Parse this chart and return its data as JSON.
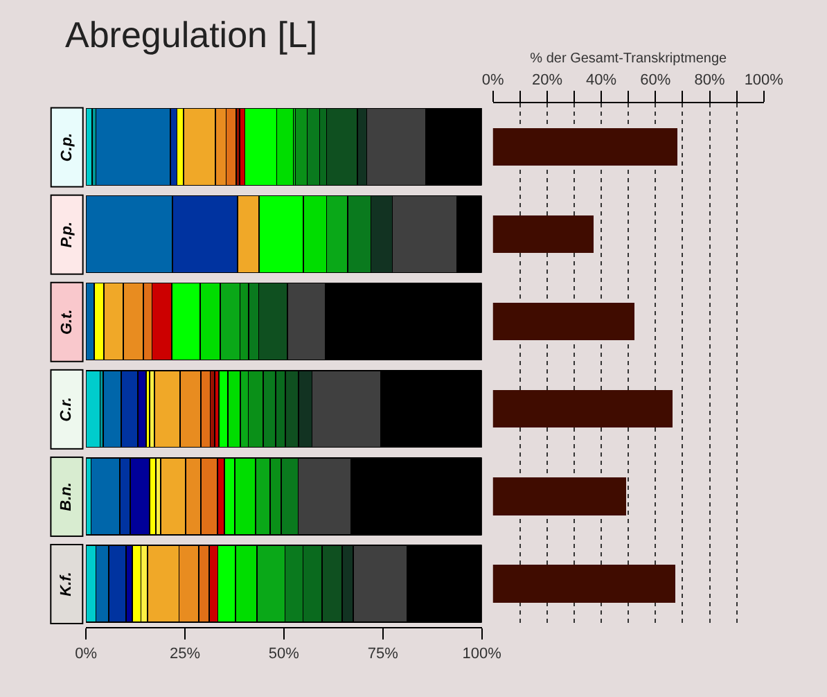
{
  "chart_data": [
    {
      "type": "bar",
      "orientation": "horizontal",
      "stacked": true,
      "title": "Abregulation [L]",
      "categories": [
        "C.p.",
        "P.p.",
        "G.t.",
        "C.r.",
        "B.n.",
        "K.f."
      ],
      "xlim": [
        0,
        100
      ],
      "xticks": [
        {
          "value": 0,
          "label": "0%"
        },
        {
          "value": 25,
          "label": "25%"
        },
        {
          "value": 50,
          "label": "50%"
        },
        {
          "value": 75,
          "label": "75%"
        },
        {
          "value": 100,
          "label": "100%"
        }
      ],
      "series": [
        {
          "color": "#00cccc",
          "values": [
            1.6,
            null,
            null,
            3.6,
            1.3,
            2.5
          ]
        },
        {
          "color": "#009999",
          "values": [
            0.9,
            null,
            null,
            0.8,
            null,
            null
          ]
        },
        {
          "color": "#0066aa",
          "values": [
            18.8,
            21.9,
            2.1,
            4.5,
            7.3,
            3.3
          ]
        },
        {
          "color": "#0033a0",
          "values": [
            1.7,
            16.4,
            null,
            4.2,
            2.6,
            4.3
          ]
        },
        {
          "color": "#000099",
          "values": [
            null,
            null,
            null,
            2.1,
            4.9,
            1.6
          ]
        },
        {
          "color": "#ffff00",
          "values": [
            1.6,
            null,
            2.4,
            0.9,
            1.5,
            2.2
          ]
        },
        {
          "color": "#ffee44",
          "values": [
            null,
            null,
            null,
            1.2,
            1.3,
            1.7
          ]
        },
        {
          "color": "#f0a828",
          "values": [
            8.1,
            5.4,
            4.9,
            6.5,
            6.3,
            7.9
          ]
        },
        {
          "color": "#e88c20",
          "values": [
            2.7,
            null,
            5.1,
            5.2,
            3.8,
            5.0
          ]
        },
        {
          "color": "#e07018",
          "values": [
            2.5,
            null,
            2.2,
            2.4,
            4.2,
            2.6
          ]
        },
        {
          "color": "#991100",
          "values": [
            0.9,
            null,
            null,
            1.1,
            null,
            null
          ]
        },
        {
          "color": "#cc0000",
          "values": [
            1.3,
            null,
            5.0,
            1.1,
            1.8,
            2.2
          ]
        },
        {
          "color": "#00ff00",
          "values": [
            8.1,
            11.2,
            7.2,
            2.3,
            2.6,
            4.5
          ]
        },
        {
          "color": "#00dd00",
          "values": [
            4.2,
            5.9,
            5.0,
            3.1,
            5.2,
            5.4
          ]
        },
        {
          "color": "#0aa818",
          "values": [
            0.5,
            5.3,
            5.0,
            2.0,
            3.7,
            7.1
          ]
        },
        {
          "color": "#0a9018",
          "values": [
            3.0,
            null,
            2.2,
            3.8,
            2.8,
            null
          ]
        },
        {
          "color": "#0a7a1e",
          "values": [
            3.1,
            5.9,
            2.5,
            3.1,
            4.3,
            4.5
          ]
        },
        {
          "color": "#0a6a1e",
          "values": [
            1.8,
            null,
            null,
            2.5,
            null,
            4.8
          ]
        },
        {
          "color": "#0f5020",
          "values": [
            7.8,
            null,
            7.3,
            3.3,
            null,
            5.1
          ]
        },
        {
          "color": "#123322",
          "values": [
            2.3,
            5.4,
            null,
            3.4,
            null,
            2.8
          ]
        },
        {
          "color": "#404040",
          "values": [
            14.9,
            16.4,
            9.6,
            17.3,
            13.4,
            13.7
          ]
        },
        {
          "color": "#000000",
          "values": [
            14.2,
            6.2,
            39.5,
            25.6,
            33.0,
            18.8
          ]
        }
      ]
    },
    {
      "type": "bar",
      "orientation": "horizontal",
      "xlabel": "% der Gesamt-Transkriptmenge",
      "values": [
        68,
        37,
        52,
        66,
        49,
        67
      ],
      "color": "#400c00",
      "xlim": [
        0,
        100
      ],
      "xticks": [
        {
          "value": 0,
          "label": "0%"
        },
        {
          "value": 10,
          "label": null
        },
        {
          "value": 20,
          "label": "20%"
        },
        {
          "value": 30,
          "label": null
        },
        {
          "value": 40,
          "label": "40%"
        },
        {
          "value": 50,
          "label": null
        },
        {
          "value": 60,
          "label": "60%"
        },
        {
          "value": 70,
          "label": null
        },
        {
          "value": 80,
          "label": "80%"
        },
        {
          "value": 90,
          "label": null
        },
        {
          "value": 100,
          "label": "100%"
        }
      ],
      "grid": "x",
      "tick_labels": "x"
    }
  ]
}
